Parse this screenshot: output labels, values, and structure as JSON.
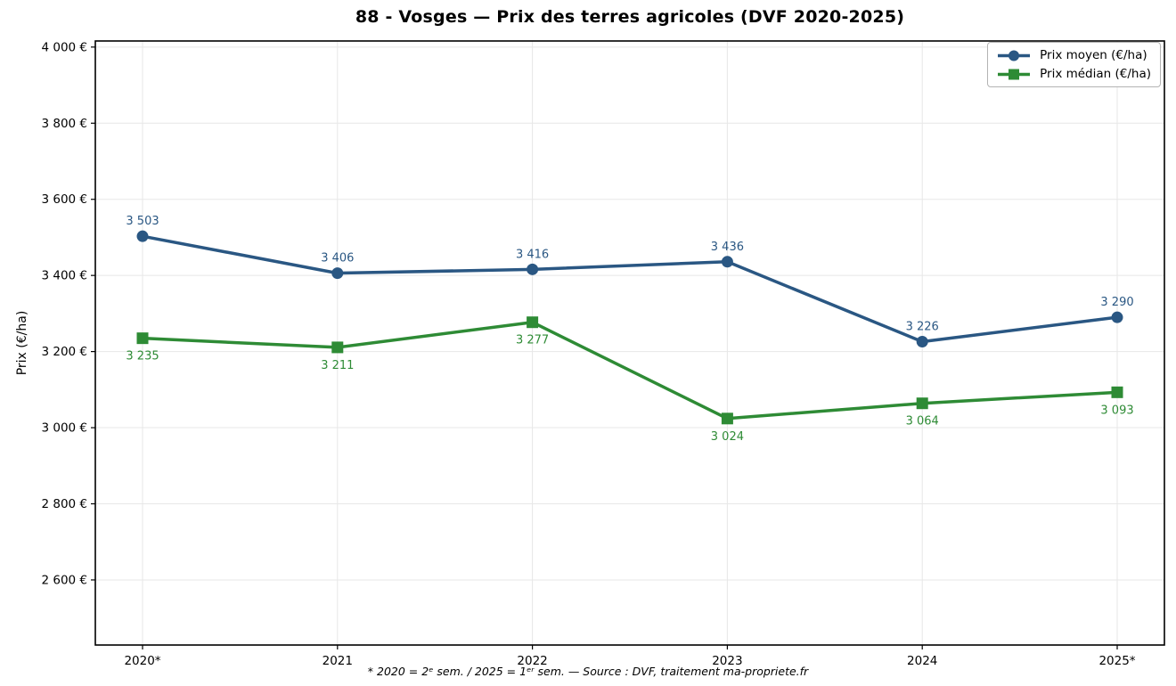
{
  "chart_data": {
    "type": "line",
    "title": "88 - Vosges — Prix des terres agricoles (DVF 2020-2025)",
    "ylabel": "Prix (€/ha)",
    "xlabel": "",
    "footnote": "* 2020 = 2ᵉ sem. / 2025 = 1ᵉʳ sem. — Source : DVF, traitement ma-propriete.fr",
    "categories": [
      "2020*",
      "2021",
      "2022",
      "2023",
      "2024",
      "2025*"
    ],
    "series": [
      {
        "name": "Prix moyen (€/ha)",
        "color": "#2a5783",
        "marker": "circle",
        "values": [
          3503,
          3406,
          3416,
          3436,
          3226,
          3290
        ],
        "labels": [
          "3 503",
          "3 406",
          "3 416",
          "3 436",
          "3 226",
          "3 290"
        ],
        "label_side": "above"
      },
      {
        "name": "Prix médian (€/ha)",
        "color": "#2e8b35",
        "marker": "square",
        "values": [
          3235,
          3211,
          3277,
          3024,
          3064,
          3093
        ],
        "labels": [
          "3 235",
          "3 211",
          "3 277",
          "3 024",
          "3 064",
          "3 093"
        ],
        "label_side": "below"
      }
    ],
    "y_ticks": [
      {
        "value": 2600,
        "label": "2 600 €"
      },
      {
        "value": 2800,
        "label": "2 800 €"
      },
      {
        "value": 3000,
        "label": "3 000 €"
      },
      {
        "value": 3200,
        "label": "3 200 €"
      },
      {
        "value": 3400,
        "label": "3 400 €"
      },
      {
        "value": 3600,
        "label": "3 600 €"
      },
      {
        "value": 3800,
        "label": "3 800 €"
      },
      {
        "value": 4000,
        "label": "4 000 €"
      }
    ],
    "ylim": [
      2429,
      4016
    ],
    "grid": true,
    "legend_position": "top-right",
    "colors": {
      "grid": "#e7e7e7",
      "spine": "#000000",
      "background": "#ffffff",
      "tick_text": "#000000"
    }
  }
}
